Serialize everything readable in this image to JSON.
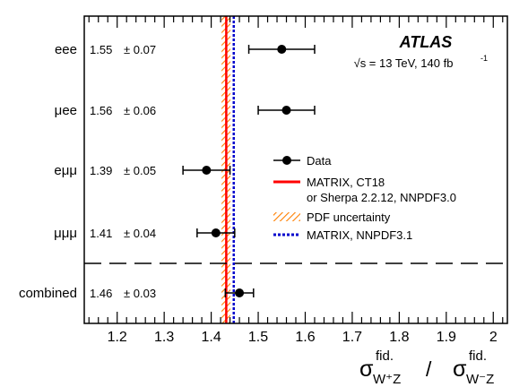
{
  "chart_data": {
    "type": "scatter",
    "experiment": "ATLAS",
    "energy_label": "√s = 13 TeV, 140 fb",
    "energy_sup": "-1",
    "x_ticks": [
      1.2,
      1.3,
      1.4,
      1.5,
      1.6,
      1.7,
      1.8,
      1.9,
      2
    ],
    "x_tick_labels": [
      "1.2",
      "1.3",
      "1.4",
      "1.5",
      "1.6",
      "1.7",
      "1.8",
      "1.9",
      "2"
    ],
    "xlim": [
      1.13,
      2.03
    ],
    "xlabel": {
      "num_main": "σ",
      "num_sup": "fid.",
      "num_sub": "W⁺Z",
      "slash": "/",
      "den_main": "σ",
      "den_sup": "fid.",
      "den_sub": "W⁻Z"
    },
    "channels": [
      {
        "name": "eee",
        "value": 1.55,
        "value_text": "1.55",
        "unc_text": "± 0.07",
        "err": 0.07
      },
      {
        "name": "μee",
        "value": 1.56,
        "value_text": "1.56",
        "unc_text": "± 0.06",
        "err": 0.06
      },
      {
        "name": "eμμ",
        "value": 1.39,
        "value_text": "1.39",
        "unc_text": "± 0.05",
        "err": 0.05
      },
      {
        "name": "μμμ",
        "value": 1.41,
        "value_text": "1.41",
        "unc_text": "± 0.04",
        "err": 0.04
      },
      {
        "name": "combined",
        "value": 1.46,
        "value_text": "1.46",
        "unc_text": "± 0.03",
        "err": 0.03
      }
    ],
    "predictions": {
      "matrix_ct18": 1.432,
      "pdf_band": [
        1.422,
        1.441
      ],
      "matrix_nnpdf31": 1.448
    },
    "legend": [
      {
        "key": "data",
        "text": [
          "Data"
        ]
      },
      {
        "key": "matrix_ct18",
        "text": [
          "MATRIX, CT18",
          "or Sherpa 2.2.12, NNPDF3.0"
        ]
      },
      {
        "key": "pdf",
        "text": [
          "PDF uncertainty"
        ]
      },
      {
        "key": "nnpdf",
        "text": [
          "MATRIX, NNPDF3.1"
        ]
      }
    ],
    "colors": {
      "data": "#000000",
      "matrix_ct18": "#ff0000",
      "pdf_band": "#ff7f00",
      "matrix_nnpdf31": "#0000cc"
    },
    "legend_position": "right-middle"
  }
}
